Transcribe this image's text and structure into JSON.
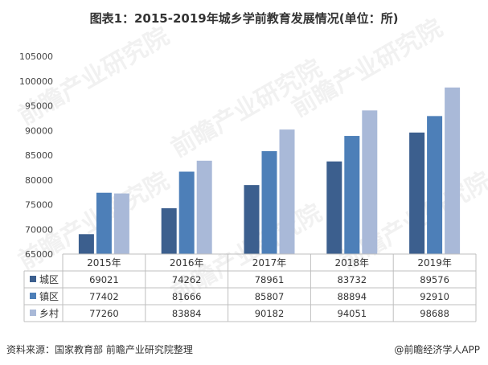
{
  "title": "图表1：2015-2019年城乡学前教育发展情况(单位：所)",
  "source": "资料来源：国家教育部 前瞻产业研究院整理",
  "brand": "@前瞻经济学人APP",
  "watermark": "前瞻产业研究院",
  "colors": {
    "城区": "#3c5f8e",
    "镇区": "#4d7fb8",
    "乡村": "#a9b9d8"
  },
  "chart_data": {
    "type": "bar",
    "title": "图表1：2015-2019年城乡学前教育发展情况(单位：所)",
    "categories": [
      "2015年",
      "2016年",
      "2017年",
      "2018年",
      "2019年"
    ],
    "series": [
      {
        "name": "城区",
        "values": [
          69021,
          74262,
          78961,
          83732,
          89576
        ]
      },
      {
        "name": "镇区",
        "values": [
          77402,
          81666,
          85807,
          88894,
          92910
        ]
      },
      {
        "name": "乡村",
        "values": [
          77260,
          83884,
          90182,
          94051,
          98688
        ]
      }
    ],
    "ylim": [
      65000,
      105000
    ],
    "yticks": [
      65000,
      70000,
      75000,
      80000,
      85000,
      90000,
      95000,
      100000,
      105000
    ],
    "grid": false,
    "legend": "data-table"
  }
}
